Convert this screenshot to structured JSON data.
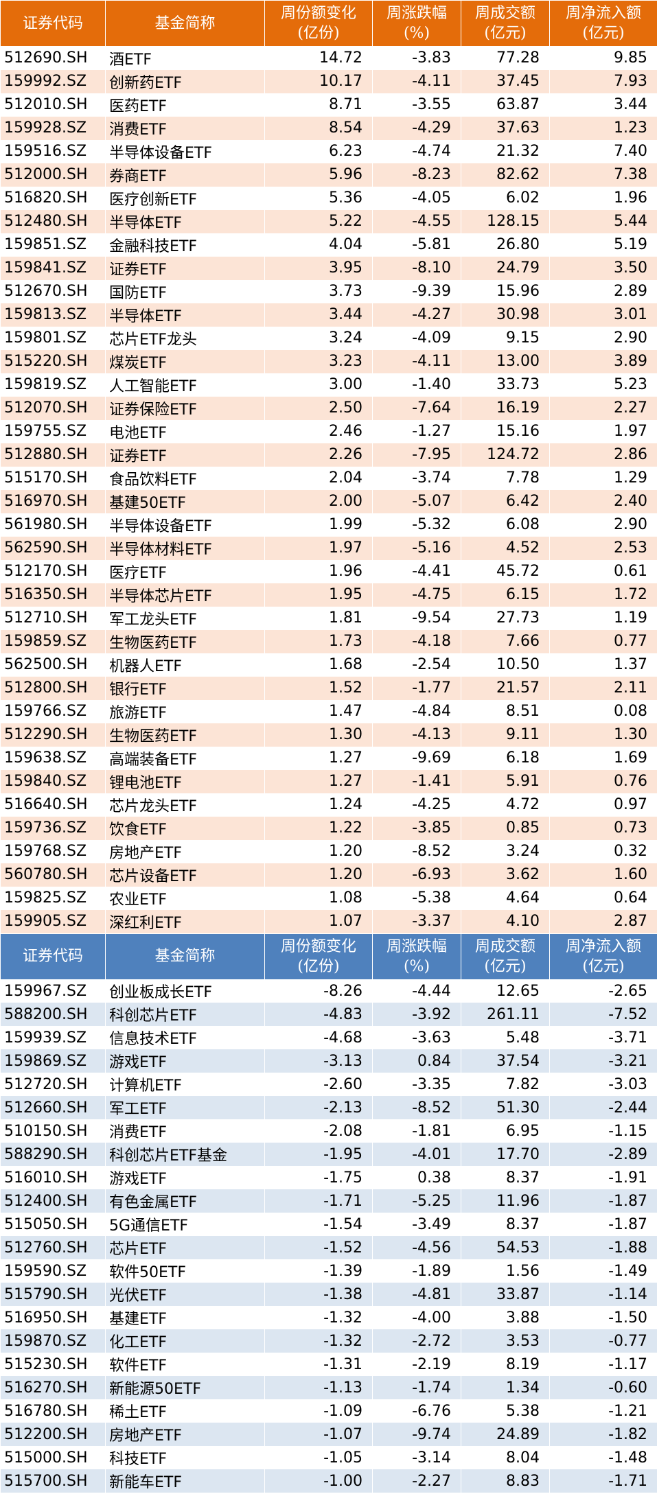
{
  "tables": [
    {
      "header": [
        "证券代码",
        "基金简称",
        "周份额变化\n(亿份)",
        "周涨跌幅\n(%)",
        "周成交额\n(亿元)",
        "周净流入额\n(亿元)"
      ],
      "rows": [
        [
          "512690.SH",
          "酒ETF",
          "14.72",
          "-3.83",
          "77.28",
          "9.85"
        ],
        [
          "159992.SZ",
          "创新药ETF",
          "10.17",
          "-4.11",
          "37.45",
          "7.93"
        ],
        [
          "512010.SH",
          "医药ETF",
          "8.71",
          "-3.55",
          "63.87",
          "3.44"
        ],
        [
          "159928.SZ",
          "消费ETF",
          "8.54",
          "-4.29",
          "37.63",
          "1.23"
        ],
        [
          "159516.SZ",
          "半导体设备ETF",
          "6.23",
          "-4.74",
          "21.32",
          "7.40"
        ],
        [
          "512000.SH",
          "券商ETF",
          "5.96",
          "-8.23",
          "82.62",
          "7.38"
        ],
        [
          "516820.SH",
          "医疗创新ETF",
          "5.36",
          "-4.05",
          "6.02",
          "1.96"
        ],
        [
          "512480.SH",
          "半导体ETF",
          "5.22",
          "-4.55",
          "128.15",
          "5.44"
        ],
        [
          "159851.SZ",
          "金融科技ETF",
          "4.04",
          "-5.81",
          "26.80",
          "5.19"
        ],
        [
          "159841.SZ",
          "证券ETF",
          "3.95",
          "-8.10",
          "24.79",
          "3.50"
        ],
        [
          "512670.SH",
          "国防ETF",
          "3.73",
          "-9.39",
          "15.96",
          "2.89"
        ],
        [
          "159813.SZ",
          "半导体ETF",
          "3.44",
          "-4.27",
          "30.98",
          "3.01"
        ],
        [
          "159801.SZ",
          "芯片ETF龙头",
          "3.24",
          "-4.09",
          "9.15",
          "2.90"
        ],
        [
          "515220.SH",
          "煤炭ETF",
          "3.23",
          "-4.11",
          "13.00",
          "3.89"
        ],
        [
          "159819.SZ",
          "人工智能ETF",
          "3.00",
          "-1.40",
          "33.73",
          "5.23"
        ],
        [
          "512070.SH",
          "证券保险ETF",
          "2.50",
          "-7.64",
          "16.19",
          "2.27"
        ],
        [
          "159755.SZ",
          "电池ETF",
          "2.46",
          "-1.27",
          "15.16",
          "1.97"
        ],
        [
          "512880.SH",
          "证券ETF",
          "2.26",
          "-7.95",
          "124.72",
          "2.86"
        ],
        [
          "515170.SH",
          "食品饮料ETF",
          "2.04",
          "-3.74",
          "7.78",
          "1.29"
        ],
        [
          "516970.SH",
          "基建50ETF",
          "2.00",
          "-5.07",
          "6.42",
          "2.40"
        ],
        [
          "561980.SH",
          "半导体设备ETF",
          "1.99",
          "-5.32",
          "6.08",
          "2.90"
        ],
        [
          "562590.SH",
          "半导体材料ETF",
          "1.97",
          "-5.16",
          "4.52",
          "2.53"
        ],
        [
          "512170.SH",
          "医疗ETF",
          "1.96",
          "-4.41",
          "45.72",
          "0.61"
        ],
        [
          "516350.SH",
          "半导体芯片ETF",
          "1.95",
          "-4.75",
          "6.15",
          "1.72"
        ],
        [
          "512710.SH",
          "军工龙头ETF",
          "1.81",
          "-9.54",
          "27.73",
          "1.19"
        ],
        [
          "159859.SZ",
          "生物医药ETF",
          "1.73",
          "-4.18",
          "7.66",
          "0.77"
        ],
        [
          "562500.SH",
          "机器人ETF",
          "1.68",
          "-2.54",
          "10.50",
          "1.37"
        ],
        [
          "512800.SH",
          "银行ETF",
          "1.52",
          "-1.77",
          "21.57",
          "2.11"
        ],
        [
          "159766.SZ",
          "旅游ETF",
          "1.47",
          "-4.84",
          "8.51",
          "0.08"
        ],
        [
          "512290.SH",
          "生物医药ETF",
          "1.30",
          "-4.13",
          "9.11",
          "1.30"
        ],
        [
          "159638.SZ",
          "高端装备ETF",
          "1.27",
          "-9.69",
          "6.18",
          "1.69"
        ],
        [
          "159840.SZ",
          "锂电池ETF",
          "1.27",
          "-1.41",
          "5.91",
          "0.76"
        ],
        [
          "516640.SH",
          "芯片龙头ETF",
          "1.24",
          "-4.25",
          "4.72",
          "0.97"
        ],
        [
          "159736.SZ",
          "饮食ETF",
          "1.22",
          "-3.85",
          "0.85",
          "0.73"
        ],
        [
          "159768.SZ",
          "房地产ETF",
          "1.20",
          "-8.52",
          "3.24",
          "0.32"
        ],
        [
          "560780.SH",
          "芯片设备ETF",
          "1.20",
          "-6.93",
          "3.62",
          "1.60"
        ],
        [
          "159825.SZ",
          "农业ETF",
          "1.08",
          "-5.38",
          "4.64",
          "0.64"
        ],
        [
          "159905.SZ",
          "深红利ETF",
          "1.07",
          "-3.37",
          "4.10",
          "2.87"
        ]
      ]
    },
    {
      "header": [
        "证券代码",
        "基金简称",
        "周份额变化\n(亿份)",
        "周涨跌幅\n(%)",
        "周成交额\n(亿元)",
        "周净流入额\n(亿元)"
      ],
      "rows": [
        [
          "159967.SZ",
          "创业板成长ETF",
          "-8.26",
          "-4.44",
          "12.65",
          "-2.65"
        ],
        [
          "588200.SH",
          "科创芯片ETF",
          "-4.83",
          "-3.92",
          "261.11",
          "-7.52"
        ],
        [
          "159939.SZ",
          "信息技术ETF",
          "-4.68",
          "-3.63",
          "5.48",
          "-3.71"
        ],
        [
          "159869.SZ",
          "游戏ETF",
          "-3.13",
          "0.84",
          "37.54",
          "-3.21"
        ],
        [
          "512720.SH",
          "计算机ETF",
          "-2.60",
          "-3.35",
          "7.82",
          "-3.03"
        ],
        [
          "512660.SH",
          "军工ETF",
          "-2.13",
          "-8.52",
          "51.30",
          "-2.44"
        ],
        [
          "510150.SH",
          "消费ETF",
          "-2.08",
          "-1.81",
          "6.95",
          "-1.15"
        ],
        [
          "588290.SH",
          "科创芯片ETF基金",
          "-1.95",
          "-4.01",
          "17.70",
          "-2.89"
        ],
        [
          "516010.SH",
          "游戏ETF",
          "-1.75",
          "0.38",
          "8.37",
          "-1.91"
        ],
        [
          "512400.SH",
          "有色金属ETF",
          "-1.71",
          "-5.25",
          "11.96",
          "-1.87"
        ],
        [
          "515050.SH",
          "5G通信ETF",
          "-1.54",
          "-3.49",
          "8.37",
          "-1.87"
        ],
        [
          "512760.SH",
          "芯片ETF",
          "-1.52",
          "-4.56",
          "54.53",
          "-1.88"
        ],
        [
          "159590.SZ",
          "软件50ETF",
          "-1.39",
          "-1.89",
          "1.56",
          "-1.49"
        ],
        [
          "515790.SH",
          "光伏ETF",
          "-1.38",
          "-4.81",
          "33.87",
          "-1.14"
        ],
        [
          "516950.SH",
          "基建ETF",
          "-1.32",
          "-4.00",
          "3.88",
          "-1.50"
        ],
        [
          "159870.SZ",
          "化工ETF",
          "-1.32",
          "-2.72",
          "3.53",
          "-0.77"
        ],
        [
          "515230.SH",
          "软件ETF",
          "-1.31",
          "-2.19",
          "8.19",
          "-1.17"
        ],
        [
          "516270.SH",
          "新能源50ETF",
          "-1.13",
          "-1.74",
          "1.34",
          "-0.60"
        ],
        [
          "516780.SH",
          "稀土ETF",
          "-1.09",
          "-6.76",
          "5.38",
          "-1.21"
        ],
        [
          "512200.SH",
          "房地产ETF",
          "-1.07",
          "-9.74",
          "24.89",
          "-1.82"
        ],
        [
          "515000.SH",
          "科技ETF",
          "-1.05",
          "-3.14",
          "8.04",
          "-1.48"
        ],
        [
          "515700.SH",
          "新能车ETF",
          "-1.00",
          "-2.27",
          "8.83",
          "-1.71"
        ]
      ]
    }
  ]
}
